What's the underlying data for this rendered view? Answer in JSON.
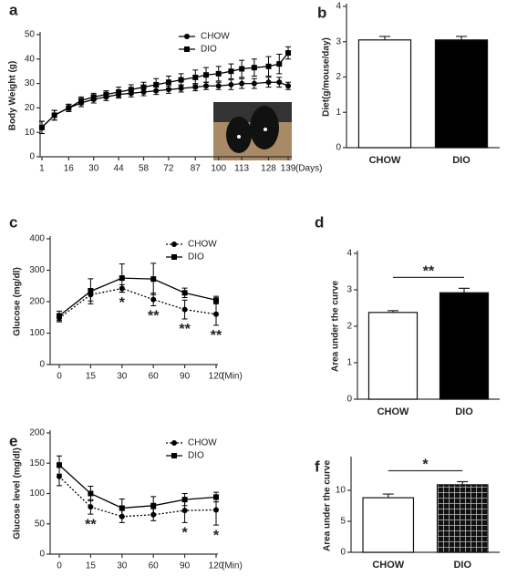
{
  "chart_data": [
    {
      "type": "line",
      "panel": "a",
      "y_label": "Body Weight (g)",
      "x_label": "(Days)",
      "x": [
        1,
        8,
        16,
        23,
        30,
        37,
        44,
        51,
        58,
        65,
        72,
        79,
        87,
        93,
        100,
        107,
        113,
        120,
        128,
        134,
        139
      ],
      "xlim": [
        0,
        140
      ],
      "xticks": [
        1,
        16,
        30,
        44,
        58,
        72,
        87,
        100,
        113,
        128,
        139
      ],
      "ylim": [
        0,
        50
      ],
      "yticks": [
        0,
        10,
        20,
        30,
        40,
        50
      ],
      "series": [
        {
          "name": "CHOW",
          "color": "#000000",
          "marker": "circle",
          "line_style": "solid",
          "values": [
            12,
            17,
            20,
            22,
            23.5,
            24.5,
            25.5,
            26,
            26.5,
            27,
            27.5,
            28,
            28.5,
            29,
            29,
            29.5,
            30,
            30,
            30.5,
            30.5,
            29
          ],
          "errors": [
            2.5,
            2,
            1.5,
            1.5,
            1.5,
            1.5,
            1.5,
            1.5,
            1.5,
            1.5,
            1.5,
            1.5,
            1.5,
            1.5,
            1.5,
            2,
            2,
            2,
            2,
            2,
            1.5
          ]
        },
        {
          "name": "DIO",
          "color": "#000000",
          "marker": "square",
          "line_style": "solid",
          "values": [
            12,
            17,
            20,
            23,
            24.5,
            25.5,
            26.5,
            27.5,
            28.5,
            29.5,
            30.5,
            31.5,
            32.5,
            33.5,
            34,
            35,
            36,
            36.5,
            37,
            38,
            42.5
          ],
          "errors": [
            2.5,
            2,
            1.5,
            1.5,
            1.5,
            1.5,
            2,
            2,
            2,
            2.5,
            2.5,
            2.5,
            3,
            3,
            3,
            3,
            3.5,
            3.5,
            4,
            4,
            2.5
          ]
        }
      ]
    },
    {
      "type": "bar",
      "panel": "b",
      "y_label": "Diet(g/mouse/day)",
      "categories": [
        "CHOW",
        "DIO"
      ],
      "values": [
        3.05,
        3.05
      ],
      "errors": [
        0.1,
        0.1
      ],
      "colors": [
        "#ffffff",
        "#000000"
      ],
      "ylim": [
        0,
        4
      ],
      "yticks": [
        0,
        1,
        2,
        3,
        4
      ]
    },
    {
      "type": "line",
      "panel": "c",
      "y_label": "Glucose (mg/dl)",
      "x_label": "(Min)",
      "categories": [
        "0",
        "15",
        "30",
        "60",
        "90",
        "120"
      ],
      "ylim": [
        0,
        400
      ],
      "yticks": [
        0,
        100,
        200,
        300,
        400
      ],
      "annotations": [
        null,
        null,
        "*",
        "**",
        "**",
        "**"
      ],
      "series": [
        {
          "name": "CHOW",
          "color": "#000000",
          "marker": "circle",
          "line_style": "dotted",
          "values": [
            148,
            222,
            242,
            207,
            175,
            160
          ],
          "errors": [
            12,
            20,
            12,
            20,
            30,
            35
          ]
        },
        {
          "name": "DIO",
          "color": "#000000",
          "marker": "square",
          "line_style": "solid",
          "values": [
            155,
            233,
            275,
            272,
            228,
            205
          ],
          "errors": [
            15,
            40,
            45,
            50,
            15,
            12
          ]
        }
      ]
    },
    {
      "type": "bar",
      "panel": "d",
      "y_label": "Area under the curve",
      "categories": [
        "CHOW",
        "DIO"
      ],
      "values": [
        2.38,
        2.92
      ],
      "errors": [
        0.05,
        0.12
      ],
      "colors": [
        "#ffffff",
        "#000000"
      ],
      "ylim": [
        0,
        4
      ],
      "yticks": [
        0,
        1,
        2,
        3,
        4
      ],
      "significance": "**"
    },
    {
      "type": "line",
      "panel": "e",
      "y_label": "Glucose level (mg/dl)",
      "x_label": "(Min)",
      "categories": [
        "0",
        "15",
        "30",
        "60",
        "90",
        "120"
      ],
      "ylim": [
        0,
        200
      ],
      "yticks": [
        0,
        50,
        100,
        150,
        200
      ],
      "annotations": [
        null,
        "**",
        null,
        null,
        "*",
        "*"
      ],
      "series": [
        {
          "name": "CHOW",
          "color": "#000000",
          "marker": "circle",
          "line_style": "dotted",
          "values": [
            128,
            78,
            62,
            65,
            72,
            73
          ],
          "errors": [
            15,
            12,
            10,
            10,
            20,
            25
          ]
        },
        {
          "name": "DIO",
          "color": "#000000",
          "marker": "square",
          "line_style": "solid",
          "values": [
            147,
            100,
            76,
            80,
            90,
            94
          ],
          "errors": [
            15,
            12,
            15,
            15,
            10,
            8
          ]
        }
      ]
    },
    {
      "type": "bar",
      "panel": "f",
      "y_label": "Area under the curve",
      "categories": [
        "CHOW",
        "DIO"
      ],
      "values": [
        8.8,
        10.9
      ],
      "errors": [
        0.6,
        0.5
      ],
      "colors": [
        "#ffffff",
        "#000000"
      ],
      "patterns": [
        null,
        "grid"
      ],
      "ylim": [
        0,
        15
      ],
      "yticks": [
        0,
        5,
        10
      ],
      "significance": "*"
    }
  ]
}
